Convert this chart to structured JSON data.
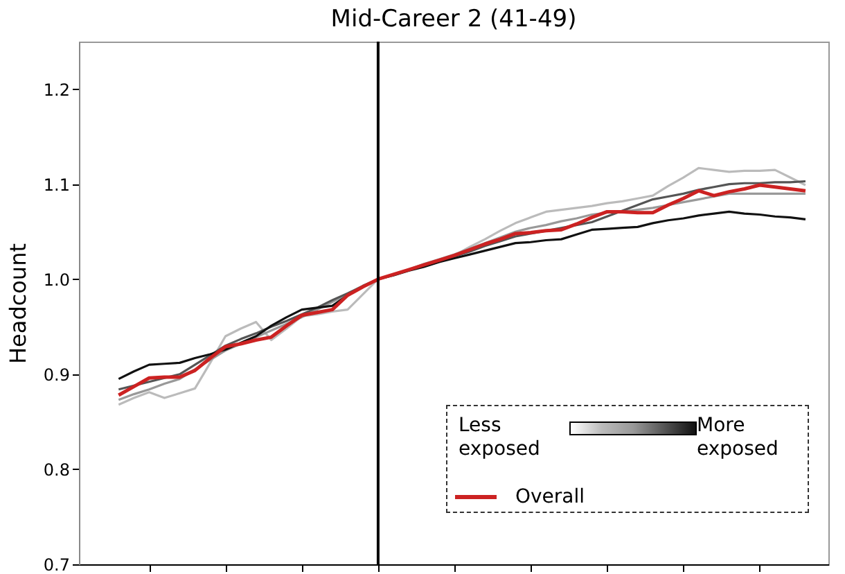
{
  "chart_data": {
    "type": "line",
    "title": "Mid-Career 2 (41-49)",
    "ylabel": "Headcount",
    "categories": [
      null,
      null,
      null,
      null,
      null,
      null,
      null,
      null,
      null,
      null,
      null,
      null,
      null,
      null,
      null,
      null,
      null,
      null,
      null,
      null,
      null,
      null,
      null,
      null,
      null,
      null,
      null,
      null,
      null,
      null,
      null,
      null,
      null,
      null,
      null,
      null,
      null,
      null,
      null,
      null,
      null,
      null,
      null,
      null,
      null,
      null
    ],
    "ylim": [
      0.7,
      1.25
    ],
    "yticks": [
      0.7,
      0.8,
      0.9,
      {
        "value": 1,
        "label": "1.0"
      },
      1.1,
      1.2
    ],
    "grid": false,
    "legend": "bottom right",
    "annotations": [
      "Less exposed",
      "More exposed"
    ],
    "series": [
      {
        "color": "#bbbbbb",
        "values": [
          0.868,
          0.875,
          0.881,
          0.875,
          0.88,
          0.885,
          0.912,
          0.94,
          0.948,
          0.955,
          0.936,
          0.948,
          0.961,
          0.963,
          0.966,
          0.968,
          0.984,
          1.0,
          1.005,
          1.01,
          1.015,
          1.02,
          1.025,
          1.034,
          1.042,
          1.051,
          1.059,
          1.065,
          1.071,
          1.073,
          1.075,
          1.077,
          1.08,
          1.082,
          1.085,
          1.088,
          1.098,
          1.107,
          1.117,
          1.115,
          1.113,
          1.114,
          1.114,
          1.115,
          1.107,
          1.099
        ]
      },
      {
        "color": "#999999",
        "values": [
          0.873,
          0.879,
          0.884,
          0.89,
          0.895,
          0.905,
          0.915,
          0.925,
          0.932,
          0.939,
          0.946,
          0.953,
          0.96,
          0.968,
          0.976,
          0.984,
          0.992,
          1.0,
          1.005,
          1.01,
          1.016,
          1.021,
          1.026,
          1.032,
          1.038,
          1.044,
          1.05,
          1.054,
          1.057,
          1.061,
          1.064,
          1.068,
          1.07,
          1.071,
          1.073,
          1.075,
          1.078,
          1.081,
          1.084,
          1.087,
          1.09,
          1.09,
          1.09,
          1.09,
          1.09,
          1.09
        ]
      },
      {
        "color": "#555555",
        "values": [
          0.884,
          0.888,
          0.892,
          0.896,
          0.9,
          0.91,
          0.92,
          0.93,
          0.937,
          0.943,
          0.95,
          0.956,
          0.963,
          0.97,
          0.978,
          0.985,
          0.993,
          1.0,
          1.005,
          1.01,
          1.014,
          1.019,
          1.024,
          1.029,
          1.035,
          1.04,
          1.045,
          1.048,
          1.051,
          1.054,
          1.057,
          1.06,
          1.066,
          1.072,
          1.078,
          1.084,
          1.087,
          1.09,
          1.094,
          1.097,
          1.1,
          1.101,
          1.101,
          1.102,
          1.102,
          1.103
        ]
      },
      {
        "color": "#111111",
        "values": [
          0.895,
          0.903,
          0.91,
          0.911,
          0.912,
          0.917,
          0.921,
          0.926,
          0.933,
          0.94,
          0.951,
          0.96,
          0.968,
          0.97,
          0.972,
          0.983,
          0.992,
          1.0,
          1.004,
          1.009,
          1.013,
          1.018,
          1.022,
          1.026,
          1.03,
          1.034,
          1.038,
          1.039,
          1.041,
          1.042,
          1.047,
          1.052,
          1.053,
          1.054,
          1.055,
          1.059,
          1.062,
          1.064,
          1.067,
          1.069,
          1.071,
          1.069,
          1.068,
          1.066,
          1.065,
          1.063
        ]
      },
      {
        "name": "Overall",
        "color": "#cc2222",
        "values": [
          0.878,
          0.887,
          0.896,
          0.897,
          0.897,
          0.904,
          0.917,
          0.929,
          0.932,
          0.936,
          0.939,
          0.951,
          0.962,
          0.965,
          0.968,
          0.983,
          0.992,
          1.0,
          1.005,
          1.01,
          1.015,
          1.02,
          1.025,
          1.031,
          1.037,
          1.042,
          1.048,
          1.049,
          1.051,
          1.052,
          1.058,
          1.065,
          1.071,
          1.071,
          1.07,
          1.07,
          1.078,
          1.085,
          1.093,
          1.088,
          1.092,
          1.095,
          1.099,
          1.097,
          1.095,
          1.093
        ]
      }
    ]
  }
}
